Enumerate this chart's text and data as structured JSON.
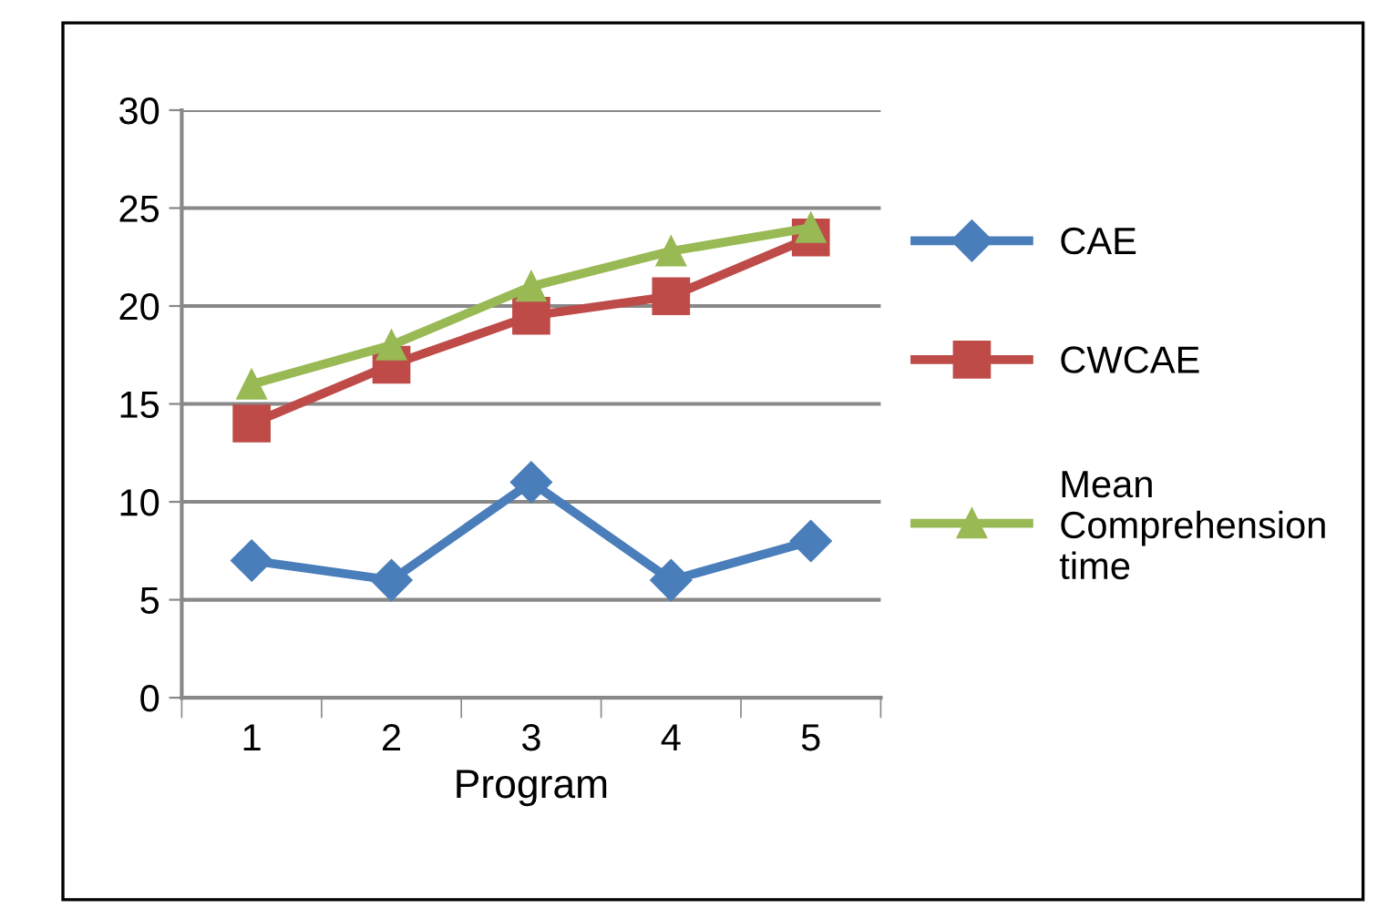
{
  "chart_data": {
    "type": "line",
    "xlabel": "Program",
    "categories": [
      "1",
      "2",
      "3",
      "4",
      "5"
    ],
    "series": [
      {
        "name": "CAE",
        "color": "#4a7ebb",
        "marker": "diamond",
        "values": [
          7,
          6,
          11,
          6,
          8
        ]
      },
      {
        "name": "CWCAE",
        "color": "#be4b48",
        "marker": "square",
        "values": [
          14,
          17,
          19.5,
          20.5,
          23.5
        ]
      },
      {
        "name": "Mean Comprehension time",
        "color": "#98b954",
        "marker": "triangle",
        "values": [
          16,
          18,
          21,
          22.8,
          24
        ]
      }
    ],
    "ylim": [
      0,
      30
    ],
    "yticks": [
      0,
      5,
      10,
      15,
      20,
      25,
      30
    ],
    "grid": "y",
    "legend": "right"
  }
}
